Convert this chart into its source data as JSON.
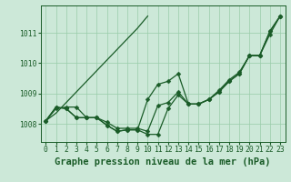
{
  "background_color": "#cce8d8",
  "grid_color": "#99ccaa",
  "line_color": "#1a5c28",
  "title": "Graphe pression niveau de la mer (hPa)",
  "xlabel_ticks": [
    0,
    1,
    2,
    3,
    4,
    5,
    6,
    7,
    8,
    9,
    10,
    11,
    12,
    13,
    14,
    15,
    16,
    17,
    18,
    19,
    20,
    21,
    22,
    23
  ],
  "ylim": [
    1007.4,
    1011.9
  ],
  "yticks": [
    1008,
    1009,
    1010,
    1011
  ],
  "series": [
    [
      1008.1,
      1008.5,
      1008.55,
      1008.55,
      1008.2,
      1008.2,
      1008.05,
      1007.85,
      1007.85,
      1007.85,
      1007.75,
      1008.6,
      1008.7,
      1009.05,
      1008.65,
      1008.65,
      1008.8,
      1009.1,
      1009.45,
      1009.7,
      1010.25,
      1010.25,
      1011.05,
      1011.55
    ],
    [
      1008.1,
      1008.55,
      1008.5,
      1008.2,
      1008.2,
      1008.2,
      1007.95,
      1007.75,
      1007.8,
      1007.8,
      1007.65,
      1007.65,
      1008.5,
      1008.95,
      1008.65,
      1008.65,
      1008.8,
      1009.05,
      1009.4,
      1009.65,
      1010.25,
      1010.25,
      1010.95,
      1011.55
    ],
    [
      1008.1,
      1008.55,
      1008.5,
      1008.2,
      1008.2,
      1008.2,
      1007.95,
      1007.75,
      1007.8,
      1007.8,
      1008.8,
      1009.3,
      1009.4,
      1009.65,
      1008.65,
      1008.65,
      1008.8,
      1009.05,
      1009.4,
      1009.65,
      1010.25,
      1010.25,
      1011.05,
      1011.55
    ],
    [
      1008.1,
      1008.35,
      1008.7,
      1009.05,
      1009.4,
      1009.75,
      1010.1,
      1010.45,
      1010.8,
      1011.15,
      1011.55,
      null,
      null,
      null,
      null,
      null,
      null,
      null,
      null,
      null,
      null,
      null,
      null,
      null
    ]
  ],
  "marker_size": 2.5,
  "linewidth": 0.9,
  "title_fontsize": 7.5,
  "tick_fontsize": 5.8
}
